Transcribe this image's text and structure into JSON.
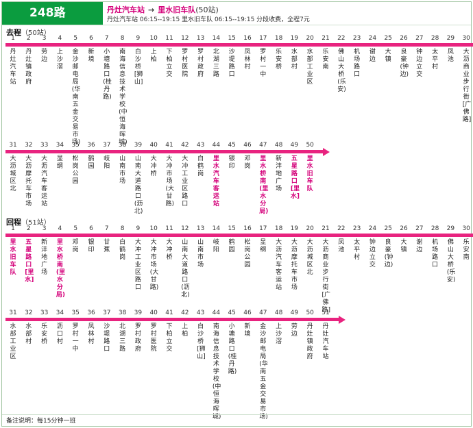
{
  "route": {
    "name": "248路",
    "origin": "丹灶汽车站",
    "arrow": "→",
    "destination": "里水旧车队",
    "total_stops": "(50站)",
    "info": "丹灶汽车站 06:15--19:15  里水旧车队 06:15--19:15  分段收费，全程7元"
  },
  "outbound": {
    "title": "去程",
    "count": "（50站）",
    "stops": [
      {
        "n": "1",
        "name": "丹灶汽车站"
      },
      {
        "n": "2",
        "name": "丹灶镇政府"
      },
      {
        "n": "3",
        "name": "劳边"
      },
      {
        "n": "4",
        "name": "上沙滘"
      },
      {
        "n": "5",
        "name": "金沙邮电局(华南五金交易市场)"
      },
      {
        "n": "6",
        "name": "新境"
      },
      {
        "n": "7",
        "name": "小塘路口(桂丹路)"
      },
      {
        "n": "8",
        "name": "南海信息技术学校(中恒海晖城)"
      },
      {
        "n": "9",
        "name": "白沙桥[狮山]"
      },
      {
        "n": "10",
        "name": "上柏"
      },
      {
        "n": "11",
        "name": "下柏立交"
      },
      {
        "n": "12",
        "name": "罗村医院"
      },
      {
        "n": "13",
        "name": "罗村政府"
      },
      {
        "n": "14",
        "name": "北湖三路"
      },
      {
        "n": "15",
        "name": "沙堤路口"
      },
      {
        "n": "16",
        "name": "凤林村"
      },
      {
        "n": "17",
        "name": "罗村一中"
      },
      {
        "n": "18",
        "name": "乐安桥"
      },
      {
        "n": "19",
        "name": "水部村"
      },
      {
        "n": "20",
        "name": "水部工业区"
      },
      {
        "n": "21",
        "name": "乐安南"
      },
      {
        "n": "22",
        "name": "佛山大桥(乐安)"
      },
      {
        "n": "23",
        "name": "机场路口"
      },
      {
        "n": "24",
        "name": "谢边"
      },
      {
        "n": "25",
        "name": "大镇"
      },
      {
        "n": "26",
        "name": "良豪(钟边)"
      },
      {
        "n": "27",
        "name": "钟边立交"
      },
      {
        "n": "28",
        "name": "太平村"
      },
      {
        "n": "29",
        "name": "凤池"
      },
      {
        "n": "30",
        "name": "大沥商业步行街[广佛路]"
      },
      {
        "n": "31",
        "name": "大沥城区北"
      },
      {
        "n": "32",
        "name": "大沥摩托车市场"
      },
      {
        "n": "33",
        "name": "大沥汽车客运站"
      },
      {
        "n": "34",
        "name": "显纲"
      },
      {
        "n": "35",
        "name": "松岗公园"
      },
      {
        "n": "36",
        "name": "鹤园"
      },
      {
        "n": "37",
        "name": "岐阳"
      },
      {
        "n": "38",
        "name": "山南市场"
      },
      {
        "n": "39",
        "name": "山南大道路口(沥北)"
      },
      {
        "n": "40",
        "name": "大冲桥"
      },
      {
        "n": "41",
        "name": "大冲市场(大甘路)"
      },
      {
        "n": "42",
        "name": "大冲工业区路口"
      },
      {
        "n": "43",
        "name": "白鹤岗"
      },
      {
        "n": "44",
        "name": "里水汽车客运站",
        "hl": true
      },
      {
        "n": "45",
        "name": "银印"
      },
      {
        "n": "46",
        "name": "邓岗"
      },
      {
        "n": "47",
        "name": "里水桥南(里水分局)",
        "hl": true
      },
      {
        "n": "48",
        "name": "新沣地广场"
      },
      {
        "n": "49",
        "name": "五星路口[里水]",
        "hl": true
      },
      {
        "n": "50",
        "name": "里水旧车队",
        "hl": true
      }
    ]
  },
  "inbound": {
    "title": "回程",
    "count": "（51站）",
    "stops": [
      {
        "n": "1",
        "name": "里水旧车队",
        "hl": true
      },
      {
        "n": "2",
        "name": "五星路口[里水]",
        "hl": true
      },
      {
        "n": "3",
        "name": "新沣地广场"
      },
      {
        "n": "4",
        "name": "里水桥南(里水分局)",
        "hl": true
      },
      {
        "n": "5",
        "name": "邓岗"
      },
      {
        "n": "6",
        "name": "银印"
      },
      {
        "n": "7",
        "name": "甘蕉"
      },
      {
        "n": "8",
        "name": "白鹤岗"
      },
      {
        "n": "9",
        "name": "大冲工业区路口"
      },
      {
        "n": "10",
        "name": "大冲市场(大甘路)"
      },
      {
        "n": "11",
        "name": "大冲桥"
      },
      {
        "n": "12",
        "name": "山南大道路口(沥北)"
      },
      {
        "n": "13",
        "name": "山南市场"
      },
      {
        "n": "14",
        "name": "岐阳"
      },
      {
        "n": "15",
        "name": "鹤园"
      },
      {
        "n": "16",
        "name": "松岗公园"
      },
      {
        "n": "17",
        "name": "显纲"
      },
      {
        "n": "18",
        "name": "大沥汽车客运站"
      },
      {
        "n": "19",
        "name": "大沥摩托车市场"
      },
      {
        "n": "20",
        "name": "大沥城区北"
      },
      {
        "n": "21",
        "name": "大沥商业步行街[广佛路]"
      },
      {
        "n": "22",
        "name": "凤池"
      },
      {
        "n": "23",
        "name": "太平村"
      },
      {
        "n": "24",
        "name": "钟边立交"
      },
      {
        "n": "25",
        "name": "良豪(钟边)"
      },
      {
        "n": "26",
        "name": "大镇"
      },
      {
        "n": "27",
        "name": "谢边"
      },
      {
        "n": "28",
        "name": "机场路口"
      },
      {
        "n": "29",
        "name": "佛山大桥(乐安)"
      },
      {
        "n": "30",
        "name": "乐安南"
      },
      {
        "n": "31",
        "name": "水部工业区"
      },
      {
        "n": "32",
        "name": "水部村"
      },
      {
        "n": "33",
        "name": "乐安桥"
      },
      {
        "n": "34",
        "name": "沥口村"
      },
      {
        "n": "35",
        "name": "罗村一中"
      },
      {
        "n": "36",
        "name": "凤林村"
      },
      {
        "n": "37",
        "name": "沙堤路口"
      },
      {
        "n": "38",
        "name": "北湖三路"
      },
      {
        "n": "39",
        "name": "罗村政府"
      },
      {
        "n": "40",
        "name": "罗村医院"
      },
      {
        "n": "41",
        "name": "下柏立交"
      },
      {
        "n": "42",
        "name": "上柏"
      },
      {
        "n": "43",
        "name": "白沙桥[狮山]"
      },
      {
        "n": "44",
        "name": "南海信息技术学校(中恒海晖城)"
      },
      {
        "n": "45",
        "name": "小塘路口(桂丹路)"
      },
      {
        "n": "46",
        "name": "新境"
      },
      {
        "n": "47",
        "name": "金沙邮电局(华南五金交易市场)"
      },
      {
        "n": "48",
        "name": "上沙滘"
      },
      {
        "n": "49",
        "name": "劳边"
      },
      {
        "n": "50",
        "name": "丹灶镇政府"
      },
      {
        "n": "51",
        "name": "丹灶汽车站"
      }
    ]
  },
  "footer": {
    "note": "备注说明：每15分钟一班"
  },
  "colors": {
    "badge": "#0b9c3f",
    "line": "#e8237f",
    "highlight": "#d4007a"
  }
}
